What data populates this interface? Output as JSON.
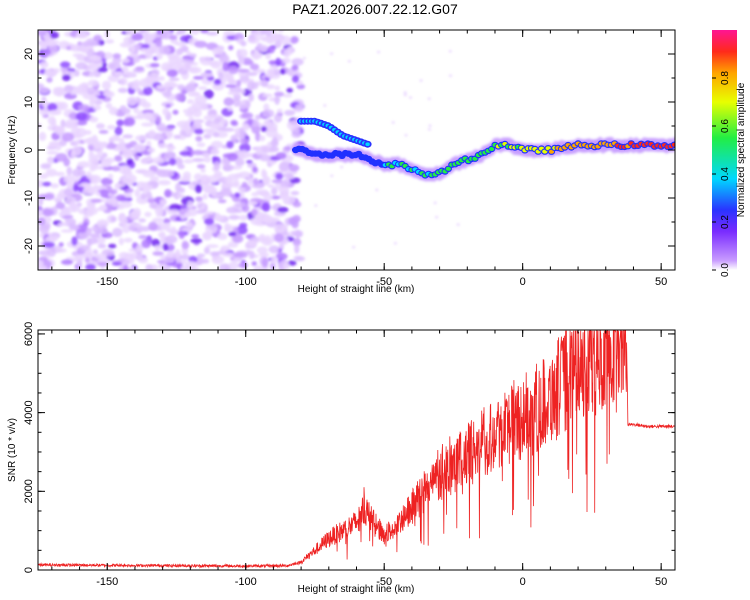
{
  "title": "PAZ1.2026.007.22.12.G07",
  "chart_data": [
    {
      "type": "heatmap",
      "xlabel": "Height of straight line (km)",
      "ylabel": "Frequency (Hz)",
      "xlim": [
        -175,
        55
      ],
      "ylim": [
        -25,
        25
      ],
      "xticks": [
        -150,
        -100,
        -50,
        0,
        50
      ],
      "yticks": [
        -20,
        -10,
        0,
        10,
        20
      ],
      "colorbar": {
        "label": "Normalized spectral amplitude",
        "ticks": [
          0.0,
          0.2,
          0.4,
          0.6,
          0.8
        ],
        "range": [
          0.0,
          1.0
        ]
      },
      "ridge": {
        "x": [
          -80,
          -75,
          -70,
          -65,
          -60,
          -55,
          -50,
          -45,
          -40,
          -35,
          -30,
          -25,
          -20,
          -15,
          -10,
          -5,
          0,
          5,
          10,
          20,
          30,
          40,
          55
        ],
        "y": [
          0,
          -1,
          -1,
          -1,
          -1,
          -2,
          -3,
          -3,
          -4,
          -5,
          -5,
          -3,
          -2,
          -1,
          1,
          1,
          0,
          0,
          0,
          1,
          1,
          1,
          1
        ],
        "amplitude": [
          0.3,
          0.3,
          0.3,
          0.3,
          0.35,
          0.35,
          0.35,
          0.4,
          0.4,
          0.4,
          0.4,
          0.45,
          0.5,
          0.5,
          0.55,
          0.55,
          0.6,
          0.65,
          0.7,
          0.75,
          0.8,
          0.85,
          0.85
        ]
      },
      "upper_branch": {
        "x": [
          -80,
          -75,
          -70,
          -65,
          -60,
          -55
        ],
        "y": [
          6,
          6,
          5,
          3,
          2,
          1
        ]
      },
      "noise_region_x": [
        -175,
        -80
      ]
    },
    {
      "type": "line",
      "xlabel": "Height of straight line (km)",
      "ylabel": "SNR (10 * v/v)",
      "xlim": [
        -175,
        55
      ],
      "ylim": [
        0,
        6100
      ],
      "xticks": [
        -150,
        -100,
        -50,
        0,
        50
      ],
      "yticks": [
        0,
        2000,
        4000,
        6000
      ],
      "series": [
        {
          "name": "SNR",
          "color": "#ee2222",
          "x": [
            -175,
            -150,
            -125,
            -100,
            -85,
            -80,
            -75,
            -70,
            -65,
            -60,
            -57,
            -55,
            -50,
            -45,
            -40,
            -35,
            -30,
            -25,
            -20,
            -15,
            -10,
            -5,
            0,
            5,
            10,
            15,
            20,
            25,
            30,
            35,
            37.5,
            38,
            40,
            45,
            50,
            55
          ],
          "y": [
            130,
            120,
            110,
            100,
            110,
            200,
            500,
            800,
            1000,
            1200,
            1600,
            1300,
            900,
            1100,
            1600,
            2000,
            2400,
            2700,
            2900,
            3200,
            3500,
            3700,
            3900,
            4100,
            4400,
            4800,
            5200,
            5500,
            5700,
            5900,
            5900,
            3700,
            3700,
            3650,
            3650,
            3650
          ]
        }
      ]
    }
  ]
}
